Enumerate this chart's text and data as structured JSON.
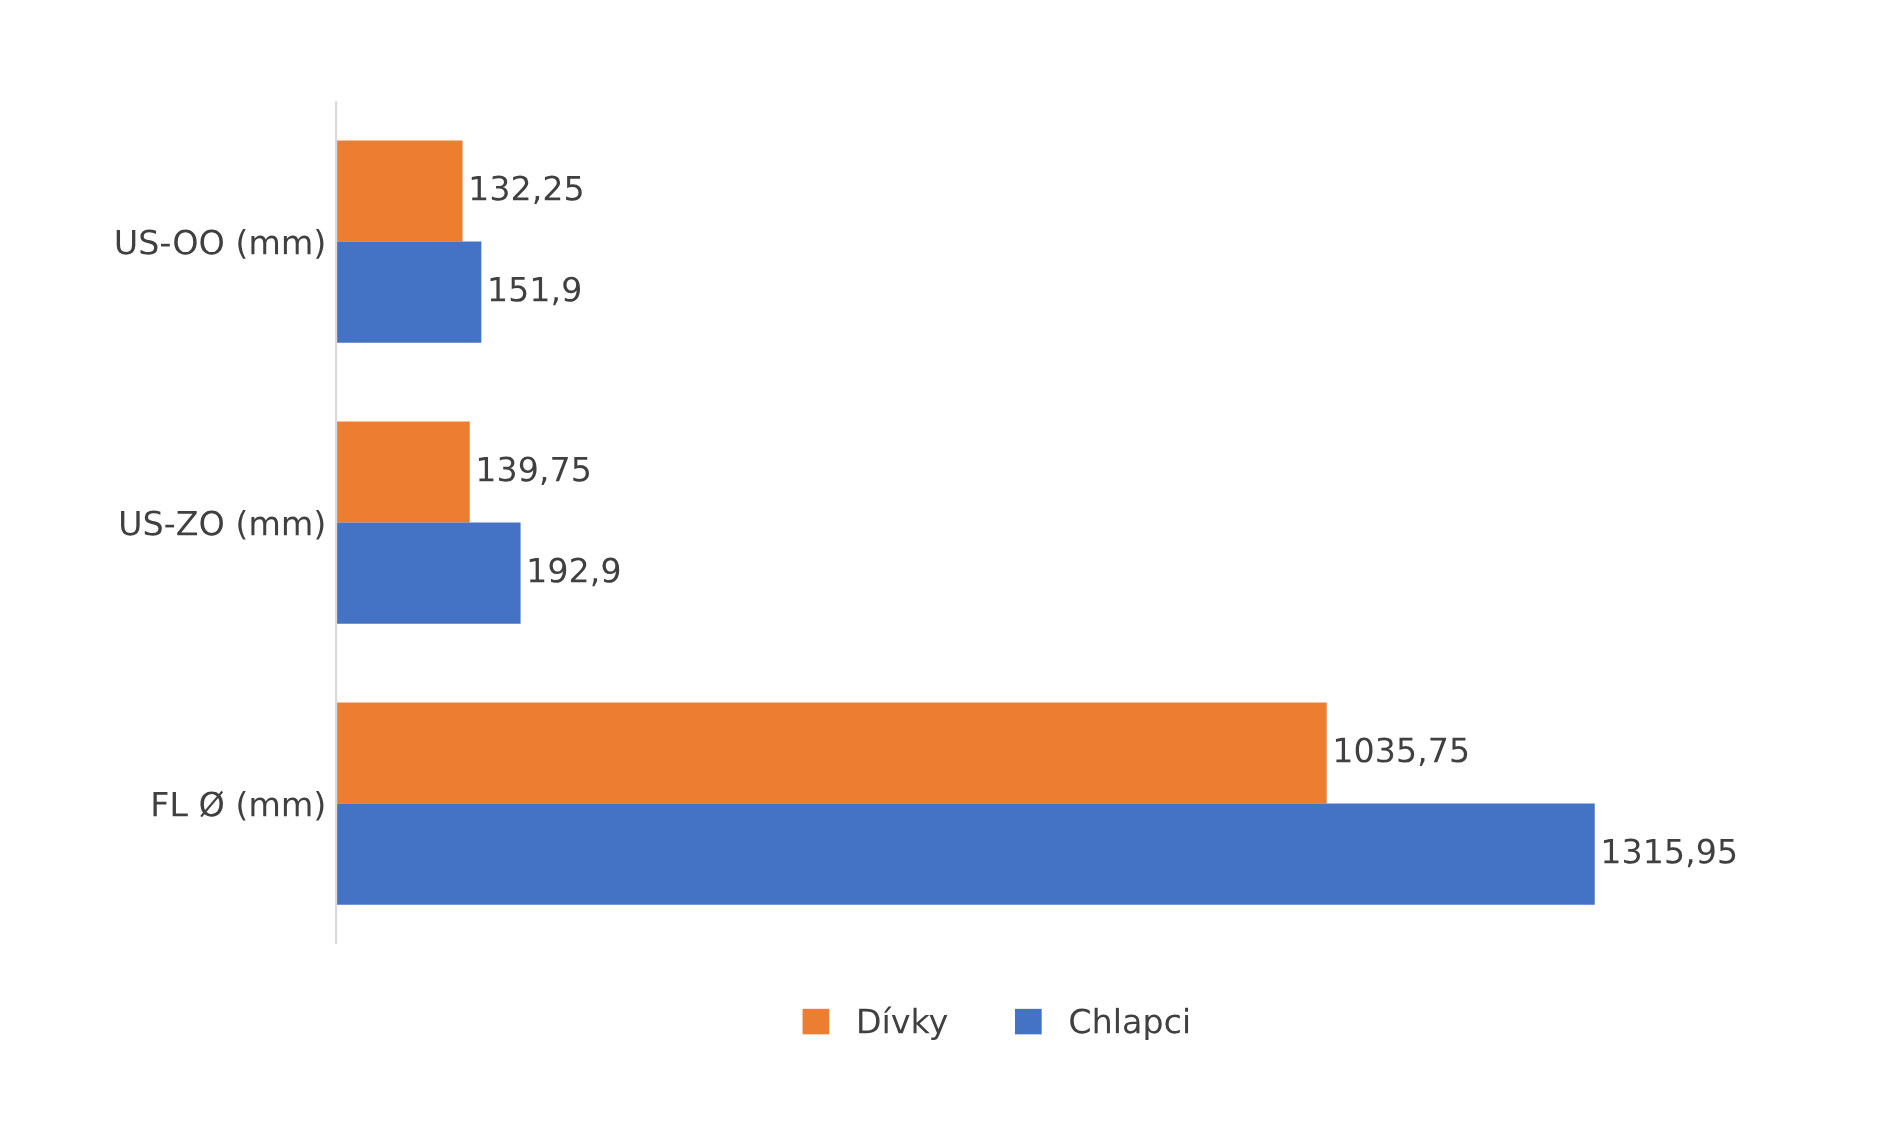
{
  "chart_data": {
    "type": "bar",
    "orientation": "horizontal",
    "categories": [
      "US-OO (mm)",
      "US-ZO (mm)",
      "FL Ø (mm)"
    ],
    "series": [
      {
        "name": "Dívky",
        "color": "#ed7d31",
        "values": [
          132.25,
          139.75,
          1035.75
        ],
        "value_labels": [
          "132,25",
          "139,75",
          "1035,75"
        ]
      },
      {
        "name": "Chlapci",
        "color": "#4472c4",
        "values": [
          151.9,
          192.9,
          1315.95
        ],
        "value_labels": [
          "151,9",
          "192,9",
          "1315,95"
        ]
      }
    ],
    "legend": "bottom",
    "grid": false,
    "tick_labels": "y"
  }
}
